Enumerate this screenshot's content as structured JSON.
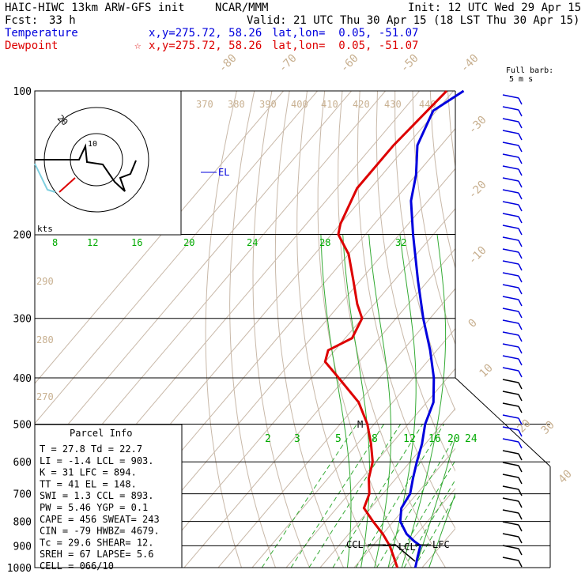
{
  "header": {
    "model": "HAIC-HIWC 13km ARW-GFS init",
    "org": "NCAR/MMM",
    "init": "Init: 12 UTC Wed 29 Apr 15",
    "fcst": "Fcst:",
    "fcst_val": "33 h",
    "valid": "Valid: 21 UTC Thu 30 Apr 15 (18 LST Thu 30 Apr 15)",
    "temp_label": "Temperature",
    "temp_xy": "x,y=275.72, 58.26",
    "temp_latlon": "lat,lon=  0.05, -51.07",
    "dew_label": "Dewpoint",
    "dew_marker": "☆",
    "dew_xy": "x,y=275.72, 58.26",
    "dew_latlon": "lat,lon=  0.05, -51.07"
  },
  "barb_legend": {
    "line1": "Full barb:",
    "line2": "5 m s"
  },
  "hodograph": {
    "ring_label": "20",
    "inner_label": "10",
    "kts": "kts"
  },
  "parcel_info": {
    "title": "Parcel Info",
    "rows": [
      "T   =    27.8  Td =  22.7",
      "LI  =    -1.4  LCL =  903.",
      "K   =      31  LFC =  894.",
      "TT  =      41  EL  =  148.",
      "SWI =     1.3  CCL =  893.",
      "PW  =    5.46  YGP =   0.1",
      "CAPE =    456  SWEAT=  243",
      "CIN  =    -79  HWBZ= 4679.",
      "Tc  =    29.6  SHEAR=  12.",
      "SREH =     67  LAPSE=  5.6",
      "CELL = 066/10"
    ]
  },
  "colors": {
    "temperature": "#0000dd",
    "dewpoint": "#dd0000",
    "isotherm": "#8a6a4a",
    "adiabat": "#00aa00",
    "wetadiabat": "#00aa00"
  },
  "chart_data": {
    "type": "line",
    "title": "",
    "pressure_levels": [
      100,
      200,
      300,
      400,
      500,
      600,
      700,
      800,
      900,
      1000
    ],
    "pressure_labels": [
      "100",
      "200",
      "300",
      "400",
      "500",
      "600",
      "700",
      "800",
      "900",
      "1000"
    ],
    "isotherm_labels": [
      "-80",
      "-70",
      "-60",
      "-50",
      "-40",
      "-30",
      "-20",
      "-10",
      "0",
      "10",
      "20",
      "30",
      "40"
    ],
    "theta_labels": [
      "370",
      "380",
      "390",
      "400",
      "410",
      "420",
      "430",
      "440"
    ],
    "dry_adiabat_labels_200": [
      "8",
      "12",
      "16",
      "20",
      "24",
      "28",
      "32"
    ],
    "theta_side_labels": [
      "290",
      "280",
      "270"
    ],
    "mixing_ratio_labels": [
      "2",
      "3",
      "5",
      "8",
      "12",
      "16",
      "20",
      "24"
    ],
    "series": [
      {
        "name": "Temperature",
        "pressure": [
          100,
          110,
          130,
          150,
          170,
          200,
          250,
          300,
          350,
          400,
          450,
          500,
          550,
          600,
          650,
          700,
          750,
          800,
          850,
          880,
          900,
          950,
          1000
        ],
        "temp": [
          -77,
          -81,
          -77,
          -70,
          -65,
          -56,
          -43,
          -32,
          -22,
          -14,
          -8,
          -5,
          -1,
          2,
          5,
          8,
          9,
          12,
          17,
          21,
          24,
          26,
          28
        ]
      },
      {
        "name": "Dewpoint",
        "pressure": [
          100,
          130,
          160,
          190,
          200,
          220,
          250,
          280,
          300,
          330,
          350,
          370,
          400,
          450,
          500,
          550,
          600,
          650,
          700,
          750,
          800,
          850,
          900,
          950,
          1000
        ],
        "temp": [
          -82,
          -84,
          -84,
          -80,
          -78,
          -70,
          -62,
          -55,
          -50,
          -48,
          -52,
          -50,
          -42,
          -30,
          -22,
          -16,
          -11,
          -8,
          -4,
          -2,
          4,
          10,
          15,
          19,
          22.7
        ]
      }
    ],
    "annotations": [
      "EL",
      "M",
      "CCL",
      "LCL",
      "LFC"
    ],
    "axis": {
      "pmin": 100,
      "pmax": 1000,
      "log_pressure": true
    }
  }
}
